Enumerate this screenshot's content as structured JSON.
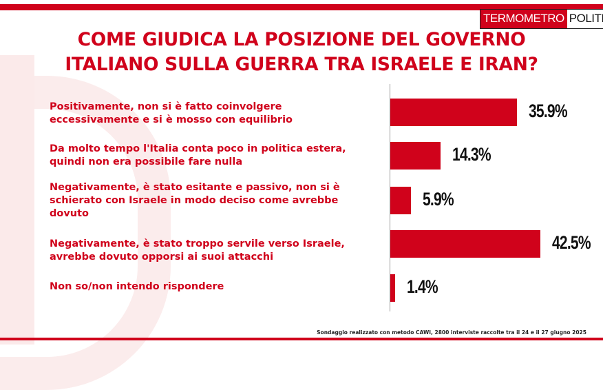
{
  "brand": {
    "logo_left": "TERMOMETRO",
    "logo_right": "POLITICO",
    "color": "#d0021b"
  },
  "title_line1": "COME GIUDICA LA POSIZIONE DEL GOVERNO",
  "title_line2": "ITALIANO SULLA GUERRA TRA ISRAELE E IRAN?",
  "footnote": "Sondaggio realizzato con metodo CAWI, 2800 interviste raccolte tra il 24 e il 27 giugno 2025",
  "chart_data": {
    "type": "bar",
    "orientation": "horizontal",
    "title": "COME GIUDICA LA POSIZIONE DEL GOVERNO ITALIANO SULLA GUERRA TRA ISRAELE E IRAN?",
    "categories": [
      "Positivamente, non si è fatto coinvolgere eccessivamente e si è mosso con equilibrio",
      "Da molto tempo l'Italia conta poco in politica estera, quindi non era possibile fare nulla",
      "Negativamente, è stato esitante e passivo, non si è schierato con Israele in modo deciso come avrebbe dovuto",
      "Negativamente, è stato troppo servile verso Israele, avrebbe dovuto opporsi ai suoi attacchi",
      "Non so/non intendo rispondere"
    ],
    "values": [
      35.9,
      14.3,
      5.9,
      42.5,
      1.4
    ],
    "value_labels": [
      "35.9%",
      "14.3%",
      "5.9%",
      "42.5%",
      "1.4%"
    ],
    "xlim": [
      0,
      42.5
    ],
    "bar_color": "#d0021b",
    "grid": false,
    "legend": "none"
  },
  "label_lines": [
    [
      "Positivamente, non si è fatto coinvolgere",
      "eccessivamente e si è mosso con equilibrio"
    ],
    [
      "Da molto tempo l'Italia conta poco in politica estera,",
      "quindi non era possibile fare nulla"
    ],
    [
      "Negativamente, è stato esitante e passivo, non si è",
      "schierato con Israele in modo deciso come avrebbe",
      "dovuto"
    ],
    [
      "Negativamente, è stato troppo servile verso Israele,",
      "avrebbe dovuto opporsi ai suoi attacchi"
    ],
    [
      "Non so/non intendo rispondere"
    ]
  ]
}
